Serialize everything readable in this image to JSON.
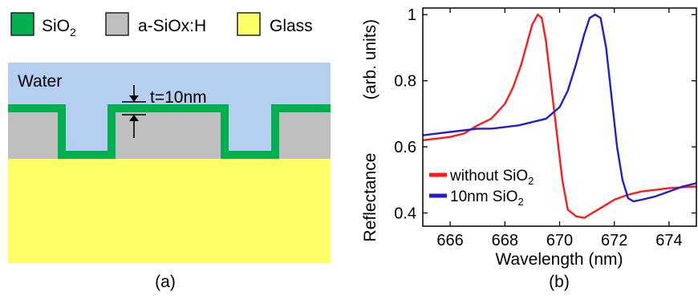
{
  "panel_a": {
    "legend": [
      {
        "label": "SiO",
        "sub": "2",
        "color": "#00b050"
      },
      {
        "label": "a-SiOx:H",
        "sub": "",
        "color": "#bfbfbf"
      },
      {
        "label": "Glass",
        "sub": "",
        "color": "#ffff66"
      }
    ],
    "water_label": "Water",
    "thickness_label": "t=10nm",
    "water_color": "#b4cff0",
    "caption": "(a)"
  },
  "caption_b": "(b)",
  "chart_data": {
    "type": "line",
    "title": "",
    "xlabel": "Wavelength (nm)",
    "ylabel_main": "Reflectance",
    "ylabel_units": "(arb. units)",
    "xlim": [
      665,
      675
    ],
    "ylim": [
      0.36,
      1.02
    ],
    "xticks": [
      666,
      668,
      670,
      672,
      674
    ],
    "yticks": [
      0.4,
      0.6,
      0.8,
      1
    ],
    "legend_position": "bottom-left",
    "series": [
      {
        "name": "without SiO",
        "name_sub": "2",
        "color": "#ff1a1a",
        "x": [
          665,
          665.5,
          666,
          666.5,
          667,
          667.5,
          668,
          668.3,
          668.6,
          668.8,
          669.0,
          669.2,
          669.35,
          669.5,
          669.7,
          669.9,
          670.1,
          670.3,
          670.6,
          670.9,
          671.2,
          671.6,
          672.0,
          672.5,
          673,
          673.5,
          674,
          674.5,
          675
        ],
        "y": [
          0.62,
          0.625,
          0.63,
          0.64,
          0.665,
          0.685,
          0.73,
          0.78,
          0.85,
          0.91,
          0.97,
          1.0,
          0.99,
          0.92,
          0.78,
          0.64,
          0.5,
          0.41,
          0.39,
          0.385,
          0.4,
          0.42,
          0.44,
          0.455,
          0.465,
          0.47,
          0.475,
          0.478,
          0.48
        ]
      },
      {
        "name": "10nm SiO",
        "name_sub": "2",
        "color": "#1f1fcc",
        "x": [
          665,
          665.5,
          666,
          666.5,
          667,
          667.5,
          668,
          668.5,
          669,
          669.5,
          670,
          670.3,
          670.6,
          670.9,
          671.1,
          671.3,
          671.5,
          671.7,
          671.9,
          672.1,
          672.3,
          672.5,
          672.7,
          673.0,
          673.5,
          674,
          674.5,
          675
        ],
        "y": [
          0.635,
          0.64,
          0.645,
          0.65,
          0.655,
          0.655,
          0.66,
          0.665,
          0.675,
          0.685,
          0.72,
          0.77,
          0.85,
          0.94,
          0.99,
          1.0,
          0.99,
          0.9,
          0.75,
          0.6,
          0.5,
          0.445,
          0.435,
          0.44,
          0.45,
          0.465,
          0.48,
          0.49
        ]
      }
    ]
  }
}
